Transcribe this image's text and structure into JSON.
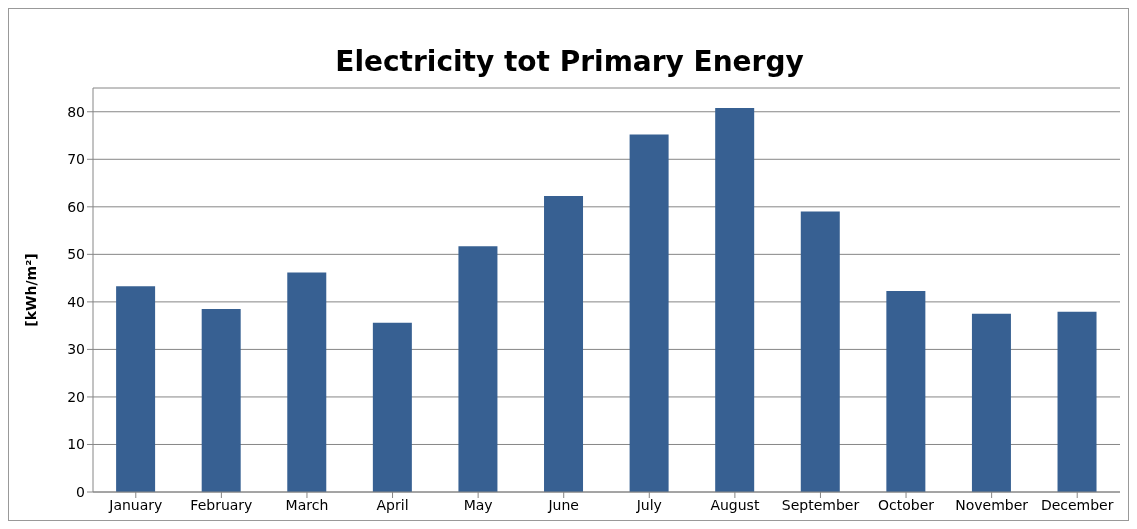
{
  "chart_data": {
    "type": "bar",
    "title": "Electricity tot Primary Energy",
    "ylabel": "[kWh/m²]",
    "categories": [
      "January",
      "February",
      "March",
      "April",
      "May",
      "June",
      "July",
      "August",
      "September",
      "October",
      "November",
      "December"
    ],
    "values": [
      43.3,
      38.5,
      46.2,
      35.6,
      51.7,
      62.3,
      75.2,
      80.8,
      59,
      42.3,
      37.5,
      37.9
    ],
    "color": "#376092",
    "ylim": [
      0,
      85
    ],
    "yticks": [
      0,
      10,
      20,
      30,
      40,
      50,
      60,
      70,
      80
    ],
    "grid": "y"
  }
}
